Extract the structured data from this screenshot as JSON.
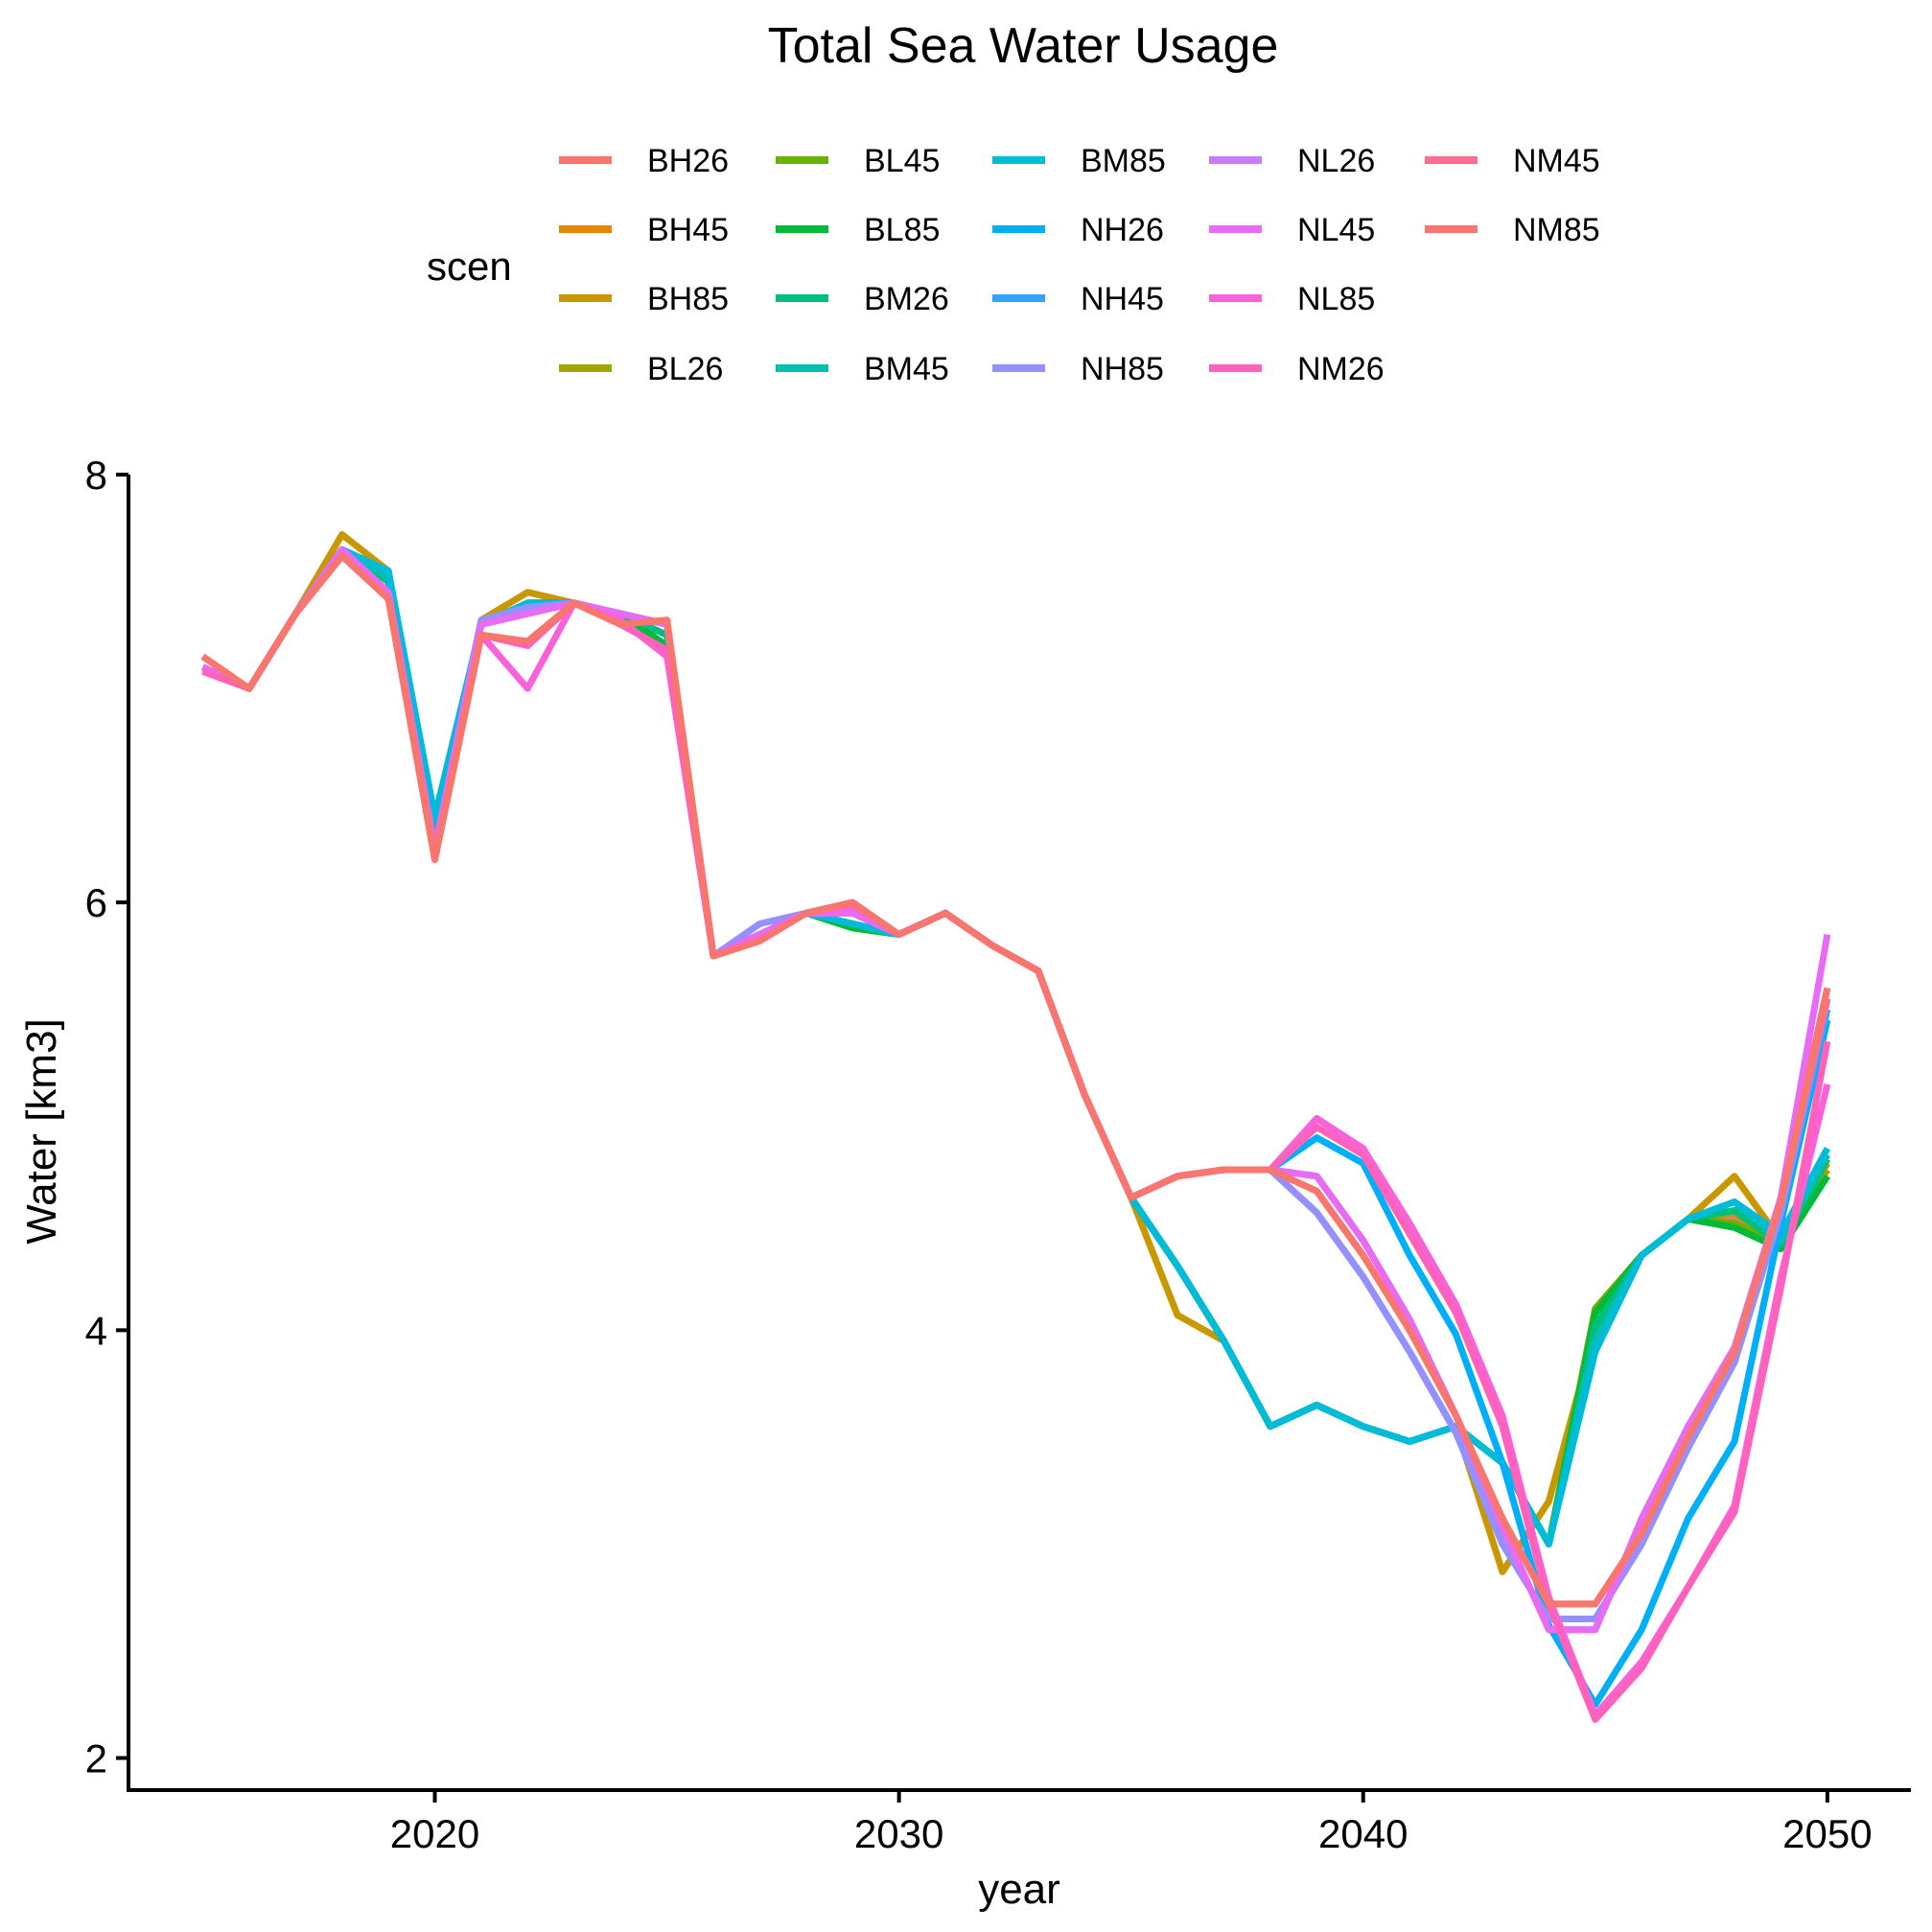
{
  "chart_data": {
    "type": "line",
    "title": "Total Sea Water Usage",
    "xlabel": "year",
    "ylabel": "Water [km3]",
    "xlim": [
      2013.4,
      2051.8
    ],
    "ylim": [
      1.85,
      8.0
    ],
    "xticks": [
      2020,
      2030,
      2040,
      2050
    ],
    "yticks": [
      2,
      4,
      6,
      8
    ],
    "xtick_labels": [
      "2020",
      "2030",
      "2040",
      "2050"
    ],
    "ytick_labels": [
      "2",
      "4",
      "6",
      "8"
    ],
    "grid": false,
    "legend": {
      "title": "scen",
      "position": "top",
      "columns": 5
    },
    "x": [
      2015,
      2016,
      2017,
      2018,
      2019,
      2020,
      2021,
      2022,
      2023,
      2024,
      2025,
      2026,
      2027,
      2028,
      2029,
      2030,
      2031,
      2032,
      2033,
      2034,
      2035,
      2036,
      2037,
      2038,
      2039,
      2040,
      2041,
      2042,
      2043,
      2044,
      2045,
      2046,
      2047,
      2048,
      2049,
      2050
    ],
    "series": [
      {
        "name": "BH26",
        "color": "#F8766D",
        "values": [
          7.1,
          7.0,
          7.35,
          7.65,
          7.5,
          6.3,
          7.3,
          7.4,
          7.4,
          7.35,
          7.3,
          5.75,
          5.85,
          5.95,
          5.9,
          5.85,
          5.95,
          5.8,
          5.68,
          5.1,
          4.62,
          4.3,
          3.95,
          3.55,
          3.65,
          3.55,
          3.48,
          3.55,
          3.38,
          3.0,
          4.1,
          4.35,
          4.52,
          4.52,
          4.4,
          4.75
        ]
      },
      {
        "name": "BH45",
        "color": "#E58700",
        "values": [
          7.1,
          7.0,
          7.35,
          7.65,
          7.5,
          6.3,
          7.3,
          7.4,
          7.4,
          7.35,
          7.3,
          5.75,
          5.85,
          5.95,
          5.9,
          5.85,
          5.95,
          5.8,
          5.68,
          5.1,
          4.62,
          4.3,
          3.95,
          3.55,
          3.65,
          3.55,
          3.48,
          3.55,
          3.38,
          3.0,
          4.1,
          4.35,
          4.52,
          4.55,
          4.4,
          4.78
        ]
      },
      {
        "name": "BH85",
        "color": "#C99800",
        "values": [
          7.1,
          7.0,
          7.35,
          7.72,
          7.55,
          6.3,
          7.32,
          7.45,
          7.4,
          7.35,
          7.3,
          5.75,
          5.85,
          5.95,
          5.9,
          5.85,
          5.95,
          5.8,
          5.68,
          5.1,
          4.62,
          4.07,
          3.95,
          3.55,
          3.65,
          3.55,
          3.48,
          3.55,
          2.87,
          3.2,
          4.0,
          4.35,
          4.52,
          4.72,
          4.42,
          4.72
        ]
      },
      {
        "name": "BL26",
        "color": "#A3A500",
        "values": [
          7.1,
          7.0,
          7.35,
          7.65,
          7.5,
          6.3,
          7.3,
          7.4,
          7.4,
          7.35,
          7.3,
          5.75,
          5.85,
          5.95,
          5.9,
          5.85,
          5.95,
          5.8,
          5.68,
          5.1,
          4.62,
          4.3,
          3.95,
          3.55,
          3.65,
          3.55,
          3.48,
          3.55,
          3.38,
          3.0,
          4.1,
          4.35,
          4.52,
          4.55,
          4.4,
          4.75
        ]
      },
      {
        "name": "BL45",
        "color": "#6BB100",
        "values": [
          7.1,
          7.0,
          7.35,
          7.65,
          7.5,
          6.3,
          7.3,
          7.4,
          7.4,
          7.35,
          7.3,
          5.75,
          5.85,
          5.95,
          5.9,
          5.85,
          5.95,
          5.8,
          5.68,
          5.1,
          4.62,
          4.3,
          3.95,
          3.55,
          3.65,
          3.55,
          3.48,
          3.55,
          3.38,
          3.0,
          4.1,
          4.35,
          4.52,
          4.5,
          4.4,
          4.72
        ]
      },
      {
        "name": "BL85",
        "color": "#00BA38",
        "values": [
          7.1,
          7.0,
          7.35,
          7.65,
          7.5,
          6.3,
          7.3,
          7.4,
          7.4,
          7.35,
          7.2,
          5.75,
          5.85,
          5.95,
          5.88,
          5.85,
          5.95,
          5.8,
          5.68,
          5.1,
          4.62,
          4.3,
          3.95,
          3.55,
          3.65,
          3.55,
          3.48,
          3.55,
          3.38,
          3.0,
          4.08,
          4.35,
          4.52,
          4.48,
          4.38,
          4.72
        ]
      },
      {
        "name": "BM26",
        "color": "#00BF7D",
        "values": [
          7.1,
          7.0,
          7.35,
          7.65,
          7.5,
          6.3,
          7.3,
          7.4,
          7.4,
          7.35,
          7.25,
          5.75,
          5.85,
          5.95,
          5.9,
          5.85,
          5.95,
          5.8,
          5.68,
          5.1,
          4.62,
          4.3,
          3.95,
          3.55,
          3.65,
          3.55,
          3.48,
          3.55,
          3.38,
          3.0,
          4.02,
          4.35,
          4.52,
          4.56,
          4.4,
          4.8
        ]
      },
      {
        "name": "BM45",
        "color": "#00C0AF",
        "values": [
          7.1,
          7.0,
          7.35,
          7.65,
          7.52,
          6.35,
          7.3,
          7.4,
          7.4,
          7.35,
          7.3,
          5.75,
          5.85,
          5.95,
          5.9,
          5.85,
          5.95,
          5.8,
          5.68,
          5.1,
          4.62,
          4.3,
          3.95,
          3.55,
          3.65,
          3.55,
          3.48,
          3.55,
          3.38,
          3.0,
          3.95,
          4.35,
          4.52,
          4.6,
          4.42,
          4.82
        ]
      },
      {
        "name": "BM85",
        "color": "#00BCD8",
        "values": [
          7.1,
          7.0,
          7.35,
          7.65,
          7.55,
          6.4,
          7.3,
          7.4,
          7.4,
          7.35,
          7.3,
          5.75,
          5.85,
          5.95,
          5.9,
          5.85,
          5.95,
          5.8,
          5.68,
          5.1,
          4.62,
          4.3,
          3.95,
          3.55,
          3.65,
          3.55,
          3.48,
          3.55,
          3.38,
          3.0,
          3.9,
          4.35,
          4.52,
          4.6,
          4.45,
          4.85
        ]
      },
      {
        "name": "NH26",
        "color": "#00B0F6",
        "values": [
          7.1,
          7.0,
          7.35,
          7.65,
          7.45,
          6.25,
          7.3,
          7.35,
          7.4,
          7.35,
          7.3,
          5.75,
          5.85,
          5.95,
          5.95,
          5.85,
          5.95,
          5.8,
          5.68,
          5.1,
          4.62,
          4.72,
          4.75,
          4.75,
          4.9,
          4.78,
          4.35,
          3.98,
          3.38,
          2.62,
          2.25,
          2.6,
          3.12,
          3.48,
          4.5,
          5.45
        ]
      },
      {
        "name": "NH45",
        "color": "#35A2FF",
        "values": [
          7.1,
          7.0,
          7.35,
          7.65,
          7.45,
          6.25,
          7.3,
          7.35,
          7.4,
          7.35,
          7.3,
          5.75,
          5.85,
          5.95,
          5.95,
          5.85,
          5.95,
          5.8,
          5.68,
          5.1,
          4.62,
          4.72,
          4.75,
          4.75,
          4.55,
          4.25,
          3.9,
          3.52,
          3.0,
          2.65,
          2.65,
          3.0,
          3.45,
          3.85,
          4.55,
          5.5
        ]
      },
      {
        "name": "NH85",
        "color": "#9590FF",
        "values": [
          7.1,
          7.0,
          7.35,
          7.65,
          7.45,
          6.25,
          7.32,
          7.38,
          7.4,
          7.35,
          7.3,
          5.75,
          5.9,
          5.95,
          5.95,
          5.85,
          5.95,
          5.8,
          5.68,
          5.1,
          4.62,
          4.72,
          4.75,
          4.75,
          4.55,
          4.25,
          3.9,
          3.52,
          3.0,
          2.65,
          2.65,
          3.0,
          3.45,
          3.85,
          4.55,
          5.55
        ]
      },
      {
        "name": "NL26",
        "color": "#C77CFF",
        "values": [
          7.1,
          7.0,
          7.35,
          7.65,
          7.45,
          6.25,
          7.3,
          7.35,
          7.4,
          7.35,
          7.3,
          5.75,
          5.85,
          5.95,
          5.95,
          5.85,
          5.95,
          5.8,
          5.68,
          5.1,
          4.62,
          4.72,
          4.75,
          4.75,
          4.72,
          4.42,
          4.05,
          3.6,
          3.08,
          2.6,
          2.6,
          3.1,
          3.55,
          3.9,
          4.62,
          5.6
        ]
      },
      {
        "name": "NL45",
        "color": "#E76BF3",
        "values": [
          7.1,
          7.0,
          7.35,
          7.65,
          7.45,
          6.25,
          7.3,
          7.35,
          7.4,
          7.35,
          7.3,
          5.75,
          5.85,
          5.95,
          5.95,
          5.85,
          5.95,
          5.8,
          5.68,
          5.1,
          4.62,
          4.72,
          4.75,
          4.75,
          4.72,
          4.42,
          4.05,
          3.6,
          3.08,
          2.6,
          2.6,
          3.12,
          3.55,
          3.92,
          4.62,
          5.85
        ]
      },
      {
        "name": "NL85",
        "color": "#FA62DB",
        "values": [
          7.08,
          7.0,
          7.35,
          7.62,
          7.42,
          6.22,
          7.25,
          7.0,
          7.4,
          7.32,
          7.15,
          5.75,
          5.82,
          5.95,
          5.98,
          5.85,
          5.95,
          5.8,
          5.68,
          5.1,
          4.62,
          4.72,
          4.75,
          4.75,
          4.99,
          4.85,
          4.5,
          4.12,
          3.6,
          2.75,
          2.2,
          2.45,
          2.8,
          3.18,
          4.25,
          5.15
        ]
      },
      {
        "name": "NM26",
        "color": "#FF62BC",
        "values": [
          7.08,
          7.0,
          7.35,
          7.62,
          7.42,
          6.22,
          7.25,
          7.2,
          7.4,
          7.3,
          7.18,
          5.75,
          5.82,
          5.95,
          6.0,
          5.85,
          5.95,
          5.8,
          5.68,
          5.1,
          4.62,
          4.72,
          4.75,
          4.75,
          4.95,
          4.82,
          4.45,
          4.08,
          3.55,
          2.72,
          2.18,
          2.42,
          2.8,
          3.15,
          4.2,
          5.35
        ]
      },
      {
        "name": "NM45",
        "color": "#FF6C91",
        "values": [
          7.15,
          7.0,
          7.35,
          7.62,
          7.42,
          6.2,
          7.25,
          7.22,
          7.4,
          7.3,
          7.32,
          5.75,
          5.82,
          5.95,
          6.0,
          5.85,
          5.95,
          5.8,
          5.68,
          5.1,
          4.62,
          4.72,
          4.75,
          4.75,
          4.65,
          4.35,
          4.0,
          3.6,
          3.12,
          2.72,
          2.72,
          3.05,
          3.5,
          3.9,
          4.6,
          5.55
        ]
      },
      {
        "name": "NM85",
        "color": "#F8766D",
        "values": [
          7.15,
          7.0,
          7.35,
          7.62,
          7.42,
          6.2,
          7.25,
          7.22,
          7.4,
          7.3,
          7.32,
          5.75,
          5.82,
          5.95,
          6.0,
          5.85,
          5.95,
          5.8,
          5.68,
          5.1,
          4.62,
          4.72,
          4.75,
          4.75,
          4.65,
          4.35,
          4.0,
          3.6,
          3.12,
          2.72,
          2.72,
          3.05,
          3.5,
          3.9,
          4.6,
          5.6
        ]
      }
    ]
  }
}
